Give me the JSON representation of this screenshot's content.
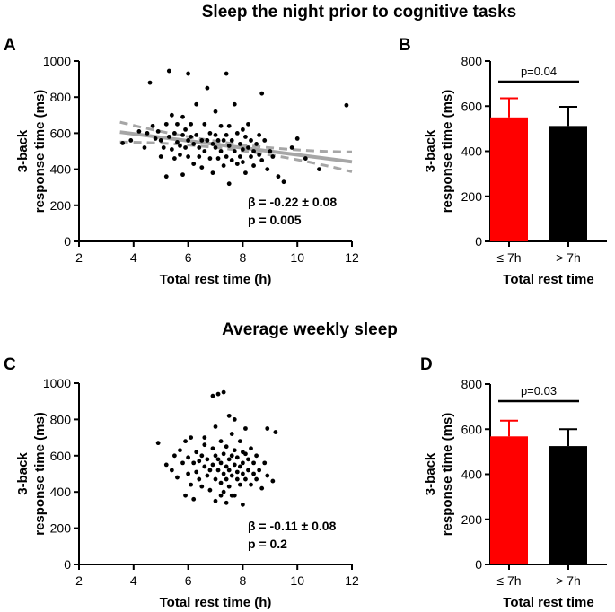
{
  "section_titles": {
    "top": "Sleep the night prior to cognitive tasks",
    "bottom": "Average weekly sleep"
  },
  "colors": {
    "points": "#000000",
    "fit_line": "#a6a6a6",
    "bar_short": "#ff0000",
    "bar_long": "#000000"
  },
  "chart_data": [
    {
      "panel": "A",
      "type": "scatter",
      "xlabel": "Total rest time (h)",
      "ylabel_line1": "3-back",
      "ylabel_line2": "response time (ms)",
      "xlim": [
        2,
        12
      ],
      "ylim": [
        0,
        1000
      ],
      "xticks": [
        2,
        4,
        6,
        8,
        10,
        12
      ],
      "yticks": [
        0,
        200,
        400,
        600,
        800,
        1000
      ],
      "regression": {
        "slope": -19.4,
        "intercept": 674,
        "x_range": [
          3.5,
          12.0
        ],
        "ci_half_width": [
          55,
          18,
          55
        ]
      },
      "stat_beta": "β = -0.22 ± 0.08",
      "stat_p": "p = 0.005",
      "points": [
        [
          3.6,
          545
        ],
        [
          3.9,
          560
        ],
        [
          4.2,
          610
        ],
        [
          4.4,
          520
        ],
        [
          4.5,
          600
        ],
        [
          4.6,
          880
        ],
        [
          4.7,
          640
        ],
        [
          4.8,
          570
        ],
        [
          4.9,
          610
        ],
        [
          5.0,
          470
        ],
        [
          5.0,
          560
        ],
        [
          5.1,
          520
        ],
        [
          5.2,
          360
        ],
        [
          5.2,
          650
        ],
        [
          5.3,
          945
        ],
        [
          5.3,
          580
        ],
        [
          5.4,
          510
        ],
        [
          5.4,
          700
        ],
        [
          5.5,
          460
        ],
        [
          5.5,
          600
        ],
        [
          5.6,
          550
        ],
        [
          5.6,
          650
        ],
        [
          5.7,
          480
        ],
        [
          5.7,
          530
        ],
        [
          5.8,
          370
        ],
        [
          5.8,
          590
        ],
        [
          5.8,
          690
        ],
        [
          5.9,
          520
        ],
        [
          5.9,
          620
        ],
        [
          6.0,
          470
        ],
        [
          6.0,
          560
        ],
        [
          6.0,
          930
        ],
        [
          6.1,
          650
        ],
        [
          6.1,
          580
        ],
        [
          6.2,
          430
        ],
        [
          6.2,
          540
        ],
        [
          6.3,
          760
        ],
        [
          6.3,
          590
        ],
        [
          6.4,
          470
        ],
        [
          6.4,
          520
        ],
        [
          6.5,
          560
        ],
        [
          6.5,
          410
        ],
        [
          6.6,
          650
        ],
        [
          6.6,
          500
        ],
        [
          6.7,
          850
        ],
        [
          6.7,
          560
        ],
        [
          6.8,
          460
        ],
        [
          6.8,
          600
        ],
        [
          6.9,
          540
        ],
        [
          6.9,
          380
        ],
        [
          7.0,
          520
        ],
        [
          7.0,
          720
        ],
        [
          7.0,
          590
        ],
        [
          7.1,
          460
        ],
        [
          7.1,
          560
        ],
        [
          7.2,
          640
        ],
        [
          7.2,
          500
        ],
        [
          7.3,
          420
        ],
        [
          7.3,
          560
        ],
        [
          7.4,
          930
        ],
        [
          7.4,
          590
        ],
        [
          7.4,
          470
        ],
        [
          7.5,
          530
        ],
        [
          7.5,
          320
        ],
        [
          7.5,
          640
        ],
        [
          7.6,
          450
        ],
        [
          7.6,
          560
        ],
        [
          7.7,
          760
        ],
        [
          7.7,
          500
        ],
        [
          7.8,
          600
        ],
        [
          7.8,
          430
        ],
        [
          7.9,
          540
        ],
        [
          7.9,
          470
        ],
        [
          8.0,
          620
        ],
        [
          8.0,
          510
        ],
        [
          8.0,
          440
        ],
        [
          8.1,
          580
        ],
        [
          8.1,
          380
        ],
        [
          8.2,
          520
        ],
        [
          8.2,
          650
        ],
        [
          8.3,
          470
        ],
        [
          8.3,
          560
        ],
        [
          8.4,
          500
        ],
        [
          8.4,
          420
        ],
        [
          8.5,
          540
        ],
        [
          8.6,
          480
        ],
        [
          8.6,
          590
        ],
        [
          8.7,
          820
        ],
        [
          8.7,
          450
        ],
        [
          8.8,
          560
        ],
        [
          8.9,
          400
        ],
        [
          9.0,
          500
        ],
        [
          9.1,
          470
        ],
        [
          9.3,
          360
        ],
        [
          9.5,
          330
        ],
        [
          9.8,
          520
        ],
        [
          10.0,
          570
        ],
        [
          10.3,
          460
        ],
        [
          10.8,
          400
        ],
        [
          11.8,
          755
        ]
      ]
    },
    {
      "panel": "B",
      "type": "bar",
      "categories": [
        "≤ 7h",
        "> 7h"
      ],
      "values": [
        550,
        512
      ],
      "errors": [
        85,
        85
      ],
      "xlabel": "Total rest time",
      "ylabel_line1": "3-back",
      "ylabel_line2": "response time (ms)",
      "ylim": [
        0,
        800
      ],
      "yticks": [
        0,
        200,
        400,
        600,
        800
      ],
      "annotation": "p=0.04"
    },
    {
      "panel": "C",
      "type": "scatter",
      "xlabel": "Total rest time (h)",
      "ylabel_line1": "3-back",
      "ylabel_line2": "response time (ms)",
      "xlim": [
        2,
        12
      ],
      "ylim": [
        0,
        1000
      ],
      "xticks": [
        2,
        4,
        6,
        8,
        10,
        12
      ],
      "yticks": [
        0,
        200,
        400,
        600,
        800,
        1000
      ],
      "stat_beta": "β = -0.11 ± 0.08",
      "stat_p": "p = 0.2",
      "points": [
        [
          4.9,
          670
        ],
        [
          5.2,
          550
        ],
        [
          5.4,
          520
        ],
        [
          5.5,
          600
        ],
        [
          5.6,
          480
        ],
        [
          5.7,
          630
        ],
        [
          5.8,
          560
        ],
        [
          5.9,
          380
        ],
        [
          5.9,
          680
        ],
        [
          6.0,
          500
        ],
        [
          6.0,
          590
        ],
        [
          6.1,
          700
        ],
        [
          6.1,
          440
        ],
        [
          6.2,
          560
        ],
        [
          6.2,
          360
        ],
        [
          6.3,
          620
        ],
        [
          6.3,
          510
        ],
        [
          6.4,
          470
        ],
        [
          6.4,
          570
        ],
        [
          6.5,
          600
        ],
        [
          6.5,
          430
        ],
        [
          6.6,
          540
        ],
        [
          6.6,
          660
        ],
        [
          6.7,
          490
        ],
        [
          6.7,
          580
        ],
        [
          6.8,
          410
        ],
        [
          6.8,
          520
        ],
        [
          6.9,
          640
        ],
        [
          6.9,
          550
        ],
        [
          6.9,
          930
        ],
        [
          7.0,
          470
        ],
        [
          7.0,
          600
        ],
        [
          7.0,
          760
        ],
        [
          7.0,
          350
        ],
        [
          7.1,
          520
        ],
        [
          7.1,
          580
        ],
        [
          7.1,
          940
        ],
        [
          7.2,
          450
        ],
        [
          7.2,
          560
        ],
        [
          7.2,
          680
        ],
        [
          7.3,
          500
        ],
        [
          7.3,
          610
        ],
        [
          7.3,
          400
        ],
        [
          7.3,
          950
        ],
        [
          7.4,
          540
        ],
        [
          7.4,
          470
        ],
        [
          7.4,
          650
        ],
        [
          7.5,
          580
        ],
        [
          7.5,
          430
        ],
        [
          7.5,
          520
        ],
        [
          7.6,
          600
        ],
        [
          7.6,
          490
        ],
        [
          7.6,
          720
        ],
        [
          7.7,
          550
        ],
        [
          7.7,
          380
        ],
        [
          7.7,
          630
        ],
        [
          7.7,
          800
        ],
        [
          7.8,
          510
        ],
        [
          7.8,
          470
        ],
        [
          7.8,
          590
        ],
        [
          7.9,
          540
        ],
        [
          7.9,
          440
        ],
        [
          7.9,
          680
        ],
        [
          8.0,
          500
        ],
        [
          8.0,
          560
        ],
        [
          8.0,
          330
        ],
        [
          8.1,
          610
        ],
        [
          8.1,
          470
        ],
        [
          8.1,
          750
        ],
        [
          8.2,
          520
        ],
        [
          8.2,
          580
        ],
        [
          8.3,
          440
        ],
        [
          8.3,
          640
        ],
        [
          8.4,
          500
        ],
        [
          8.4,
          560
        ],
        [
          8.5,
          470
        ],
        [
          8.5,
          600
        ],
        [
          8.6,
          520
        ],
        [
          8.7,
          420
        ],
        [
          8.8,
          560
        ],
        [
          8.9,
          490
        ],
        [
          8.9,
          750
        ],
        [
          9.1,
          460
        ],
        [
          9.2,
          730
        ],
        [
          7.5,
          820
        ],
        [
          6.6,
          700
        ],
        [
          7.2,
          380
        ],
        [
          7.4,
          340
        ],
        [
          8.0,
          620
        ],
        [
          7.6,
          380
        ]
      ]
    },
    {
      "panel": "D",
      "type": "bar",
      "categories": [
        "≤ 7h",
        "> 7h"
      ],
      "values": [
        568,
        525
      ],
      "errors": [
        70,
        75
      ],
      "xlabel": "Total rest time",
      "ylabel_line1": "3-back",
      "ylabel_line2": "response time (ms)",
      "ylim": [
        0,
        800
      ],
      "yticks": [
        0,
        200,
        400,
        600,
        800
      ],
      "annotation": "p=0.03"
    }
  ],
  "panel_labels": [
    "A",
    "B",
    "C",
    "D"
  ]
}
